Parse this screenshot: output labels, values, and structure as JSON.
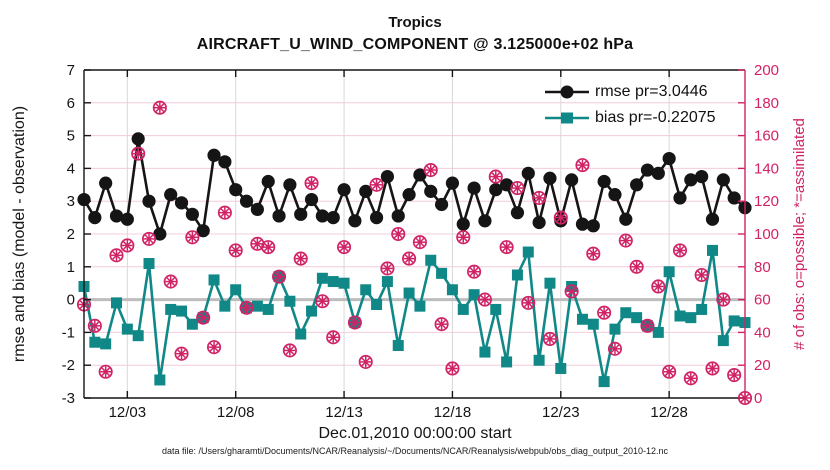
{
  "header": {
    "title": "Tropics",
    "subtitle": "AIRCRAFT_U_WIND_COMPONENT @ 3.125000e+02 hPa"
  },
  "legend": {
    "rmse_label": "rmse pr=3.0446",
    "bias_label": "bias pr=-0.22075"
  },
  "axes": {
    "left_label": "rmse and bias (model - observation)",
    "right_label": "# of obs: o=possible; *=assimilated",
    "x_label": "Dec.01,2010 00:00:00 start",
    "left_ticks": [
      -3,
      -2,
      -1,
      0,
      1,
      2,
      3,
      4,
      5,
      6,
      7
    ],
    "right_ticks": [
      0,
      20,
      40,
      60,
      80,
      100,
      120,
      140,
      160,
      180,
      200
    ],
    "x_ticks": [
      {
        "day": 3,
        "label": "12/03"
      },
      {
        "day": 8,
        "label": "12/08"
      },
      {
        "day": 13,
        "label": "12/13"
      },
      {
        "day": 18,
        "label": "12/18"
      },
      {
        "day": 23,
        "label": "12/23"
      },
      {
        "day": 28,
        "label": "12/28"
      }
    ]
  },
  "footer": {
    "datafile": "data file: /Users/gharamti/Documents/NCAR/Reanalysis/~/Documents/NCAR/Reanalysis/webpub/obs_diag_output_2010-12.nc"
  },
  "colors": {
    "rmse_black": "#151515",
    "bias_teal": "#108888",
    "obs_pink": "#D02366",
    "grid_pink": "#F4CCDC",
    "grid_gray": "#d8d8d8",
    "zero_gray": "#bdbdbd",
    "background": "#ffffff"
  },
  "chart_data": {
    "type": "line",
    "title": "Tropics",
    "subtitle": "AIRCRAFT_U_WIND_COMPONENT @ 3.125000e+02 hPa",
    "xlabel": "Dec.01,2010 00:00:00 start",
    "x_start": "2010-12-01 00:00",
    "x_end": "2010-12-31 12:00",
    "x_step_days": 0.5,
    "n_points": 62,
    "x_tick_labels": [
      "12/03",
      "12/08",
      "12/13",
      "12/18",
      "12/23",
      "12/28"
    ],
    "ylabel_left": "rmse and bias (model - observation)",
    "ylim_left": [
      -3,
      7
    ],
    "ylabel_right": "# of obs: o=possible; *=assimilated",
    "ylim_right": [
      0,
      200
    ],
    "grid": true,
    "zero_line": true,
    "legend_position": "top-right-inside",
    "series": [
      {
        "name": "rmse pr=3.0446",
        "axis": "left",
        "style": "line",
        "marker": "filled-circle",
        "color_key": "rmse_black",
        "values": [
          3.05,
          2.5,
          3.55,
          2.55,
          2.45,
          4.9,
          3.0,
          2.0,
          3.2,
          2.95,
          2.6,
          2.1,
          4.4,
          4.2,
          3.35,
          3.0,
          2.75,
          3.6,
          2.55,
          3.5,
          2.6,
          3.05,
          2.55,
          2.5,
          3.35,
          2.4,
          3.3,
          2.5,
          3.75,
          2.55,
          3.2,
          3.8,
          3.3,
          2.9,
          3.55,
          2.3,
          3.4,
          2.4,
          3.35,
          3.5,
          2.65,
          3.85,
          2.35,
          3.7,
          2.4,
          3.65,
          2.3,
          2.25,
          3.6,
          3.2,
          2.45,
          3.5,
          3.95,
          3.85,
          4.3,
          3.1,
          3.65,
          3.75,
          2.45,
          3.65,
          3.1,
          2.8
        ]
      },
      {
        "name": "bias pr=-0.22075",
        "axis": "left",
        "style": "line",
        "marker": "filled-square",
        "color_key": "bias_teal",
        "values": [
          0.4,
          -1.3,
          -1.35,
          -0.1,
          -0.9,
          -1.1,
          1.1,
          -2.45,
          -0.3,
          -0.35,
          -0.75,
          -0.55,
          0.6,
          -0.2,
          0.3,
          -0.25,
          -0.2,
          -0.3,
          0.7,
          -0.05,
          -1.05,
          -0.35,
          0.65,
          0.55,
          0.5,
          -0.7,
          0.3,
          -0.15,
          0.55,
          -1.4,
          0.2,
          -0.2,
          1.2,
          0.8,
          0.3,
          -0.3,
          0.15,
          -1.6,
          -0.3,
          -1.9,
          0.75,
          1.45,
          -1.85,
          0.5,
          -2.1,
          0.4,
          -0.6,
          -0.75,
          -2.5,
          -0.9,
          -0.4,
          -0.55,
          -0.8,
          -1.0,
          0.85,
          -0.5,
          -0.55,
          -0.3,
          1.5,
          -1.25,
          -0.65,
          -0.7
        ]
      },
      {
        "name": "# of obs (o=possible, *=assimilated)",
        "axis": "right",
        "style": "scatter",
        "marker": "circle-asterisk",
        "color_key": "obs_pink",
        "values": [
          57,
          44,
          16,
          87,
          93,
          149,
          97,
          177,
          71,
          27,
          98,
          49,
          31,
          113,
          90,
          55,
          94,
          92,
          74,
          29,
          85,
          131,
          59,
          37,
          92,
          46,
          22,
          130,
          79,
          100,
          85,
          95,
          139,
          45,
          18,
          98,
          77,
          60,
          135,
          92,
          128,
          58,
          122,
          36,
          110,
          65,
          142,
          88,
          52,
          30,
          96,
          80,
          44,
          68,
          16,
          90,
          12,
          75,
          18,
          60,
          14,
          0
        ]
      }
    ]
  }
}
